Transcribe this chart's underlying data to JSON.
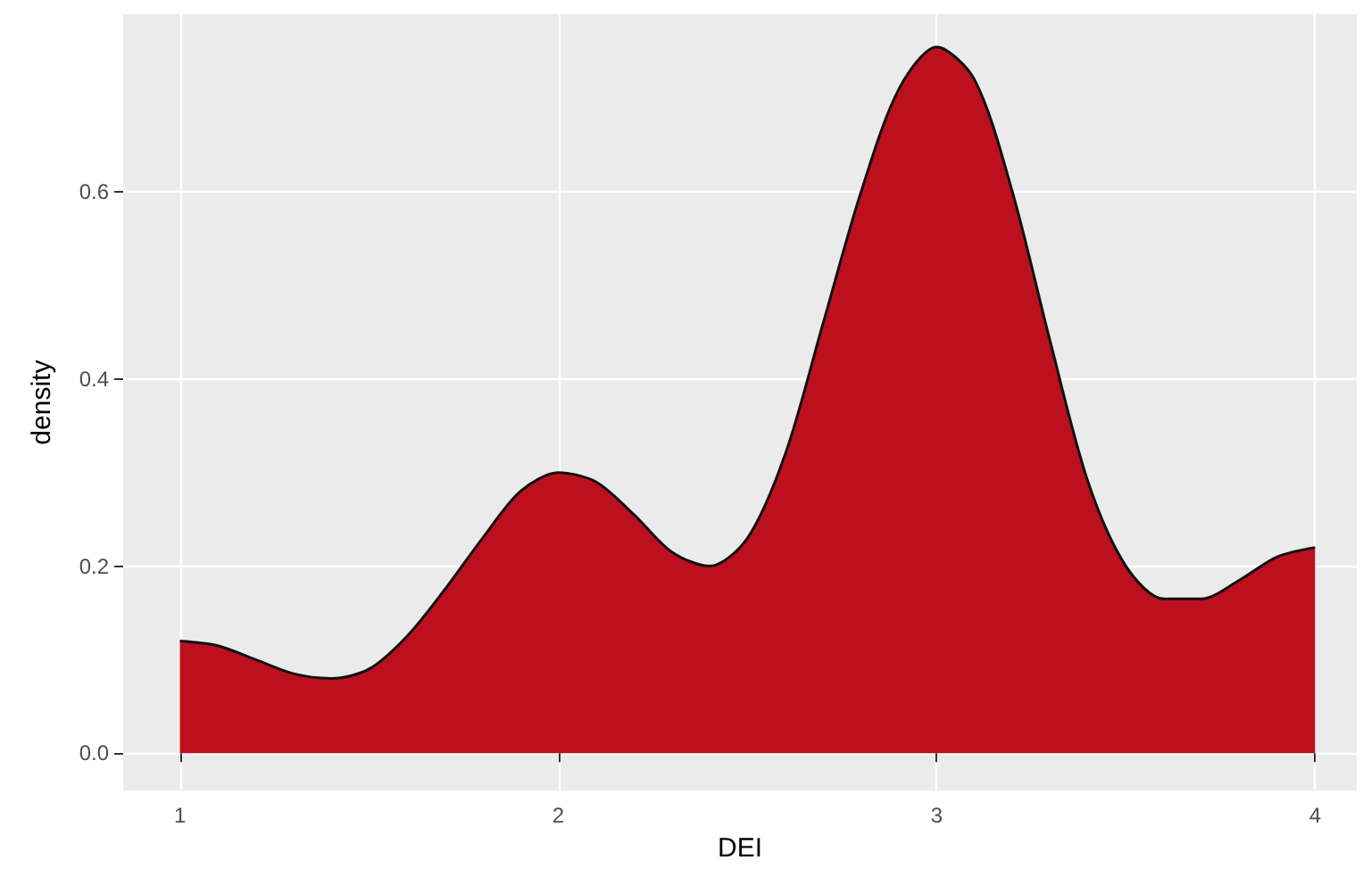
{
  "chart_data": {
    "type": "area",
    "xlabel": "DEI",
    "ylabel": "density",
    "x": [
      1.0,
      1.1,
      1.2,
      1.3,
      1.4,
      1.5,
      1.6,
      1.7,
      1.8,
      1.9,
      2.0,
      2.1,
      2.2,
      2.3,
      2.4,
      2.5,
      2.6,
      2.7,
      2.8,
      2.9,
      3.0,
      3.1,
      3.2,
      3.3,
      3.4,
      3.5,
      3.6,
      3.7,
      3.8,
      3.9,
      4.0
    ],
    "series": [
      {
        "color": "#bc101e",
        "values": [
          0.12,
          0.115,
          0.1,
          0.085,
          0.08,
          0.09,
          0.125,
          0.175,
          0.23,
          0.28,
          0.3,
          0.29,
          0.255,
          0.215,
          0.2,
          0.23,
          0.32,
          0.46,
          0.6,
          0.71,
          0.755,
          0.72,
          0.6,
          0.44,
          0.29,
          0.2,
          0.165,
          0.165,
          0.185,
          0.21,
          0.22
        ]
      }
    ],
    "xlim": [
      0.85,
      4.11
    ],
    "ylim": [
      -0.04,
      0.79
    ],
    "xticks": [
      1,
      2,
      3,
      4
    ],
    "yticks": [
      {
        "value": 0,
        "label": "0.0"
      },
      0.2,
      0.4,
      0.6
    ],
    "grid": true
  }
}
